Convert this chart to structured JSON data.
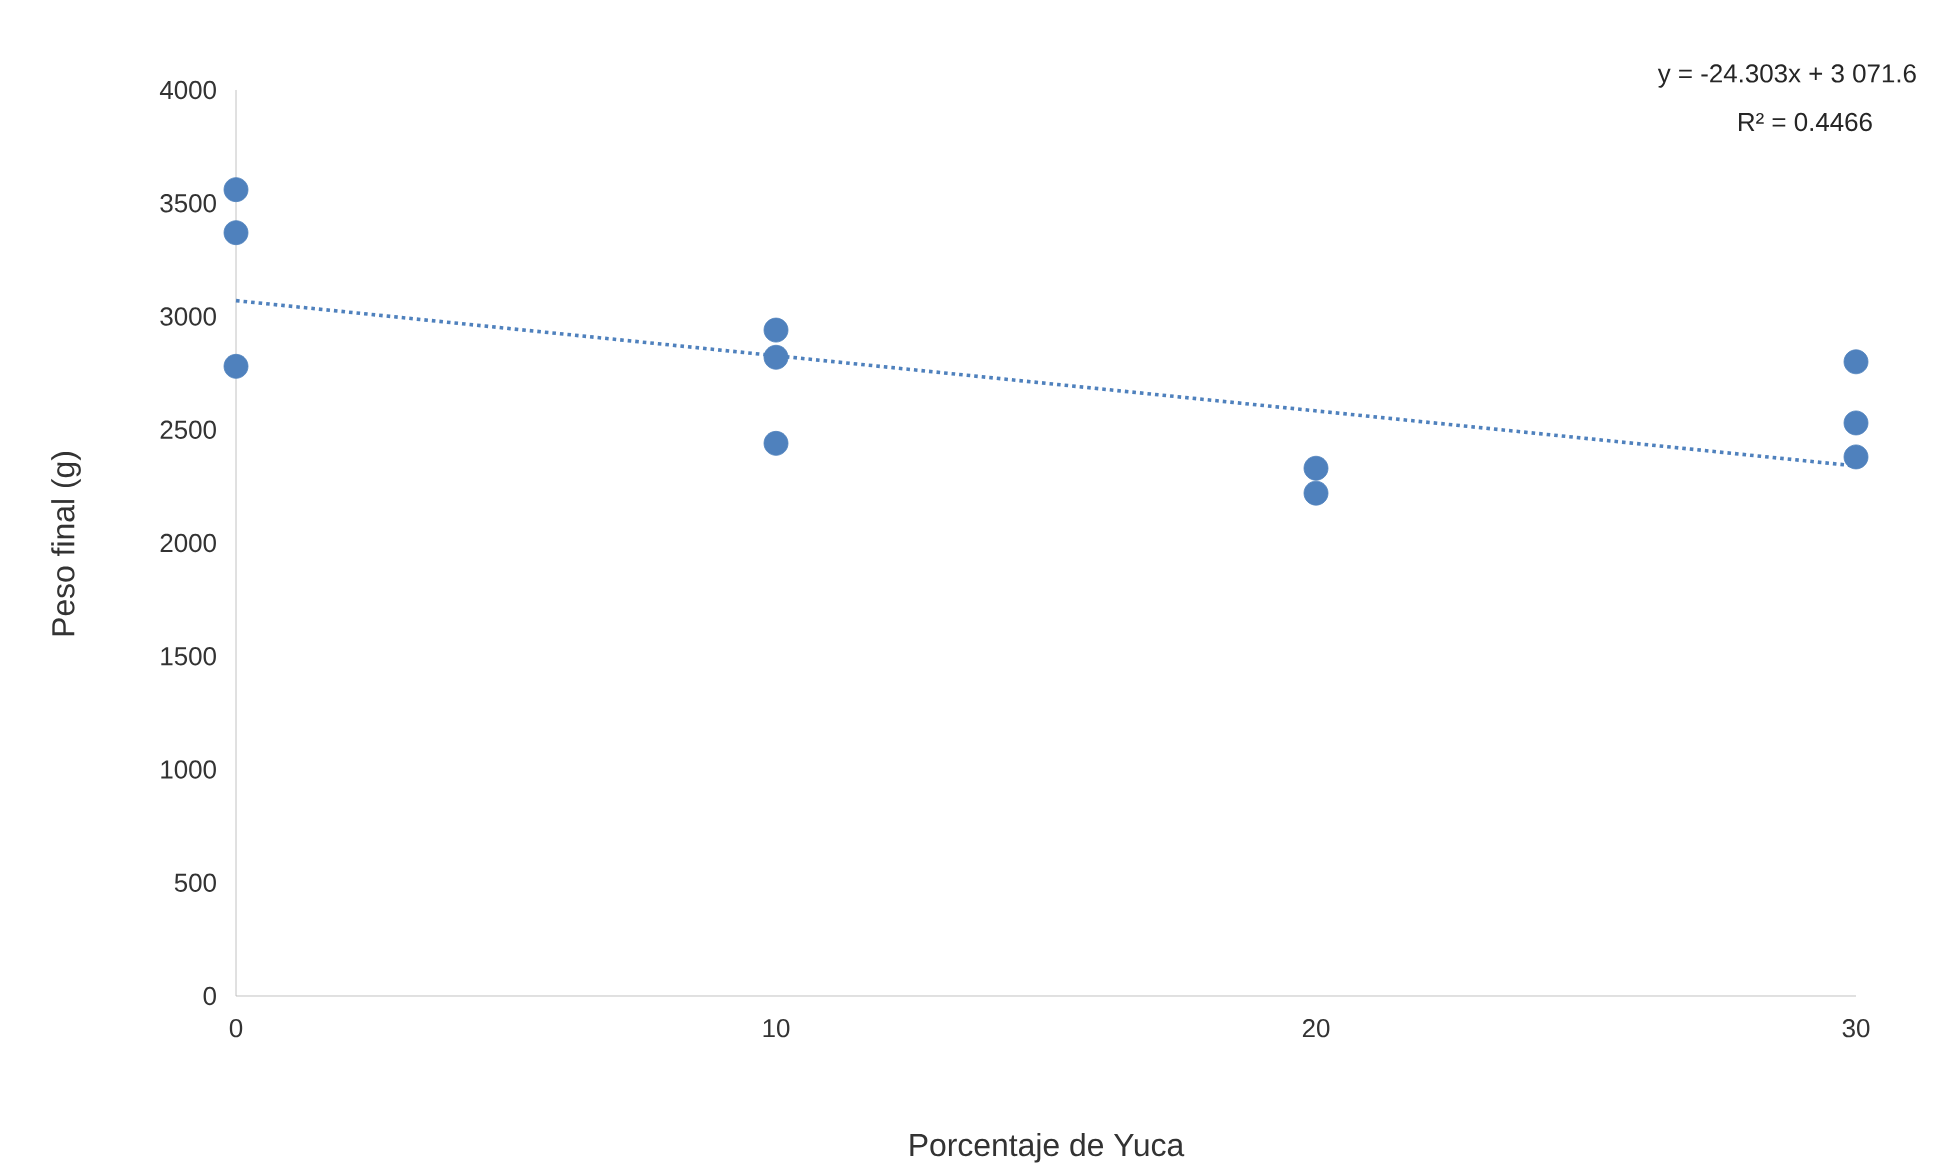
{
  "chart_data": {
    "type": "scatter",
    "xlabel": "Porcentaje de Yuca",
    "ylabel": "Peso final (g)",
    "annotations": [
      "y = -24.303x + 3 071.6",
      "R² = 0.4466"
    ],
    "xlim": [
      0,
      30
    ],
    "xticks": [
      0,
      10,
      20,
      30
    ],
    "ylim": [
      0,
      4000
    ],
    "yticks": [
      0,
      500,
      1000,
      1500,
      2000,
      2500,
      3000,
      3500,
      4000
    ],
    "grid": false,
    "series": [
      {
        "color": "#4f81bd",
        "marker": "circle",
        "x": [
          0,
          0,
          0,
          10,
          10,
          10,
          20,
          20,
          30,
          30,
          30
        ],
        "values": [
          3560,
          3370,
          2780,
          2940,
          2820,
          2440,
          2330,
          2220,
          2800,
          2530,
          2380
        ]
      },
      {
        "type": "line",
        "color": "#4f81bd",
        "line_style": "dotted",
        "marker": "none",
        "x": [
          0,
          30
        ],
        "values": [
          3070,
          2340
        ]
      }
    ]
  }
}
